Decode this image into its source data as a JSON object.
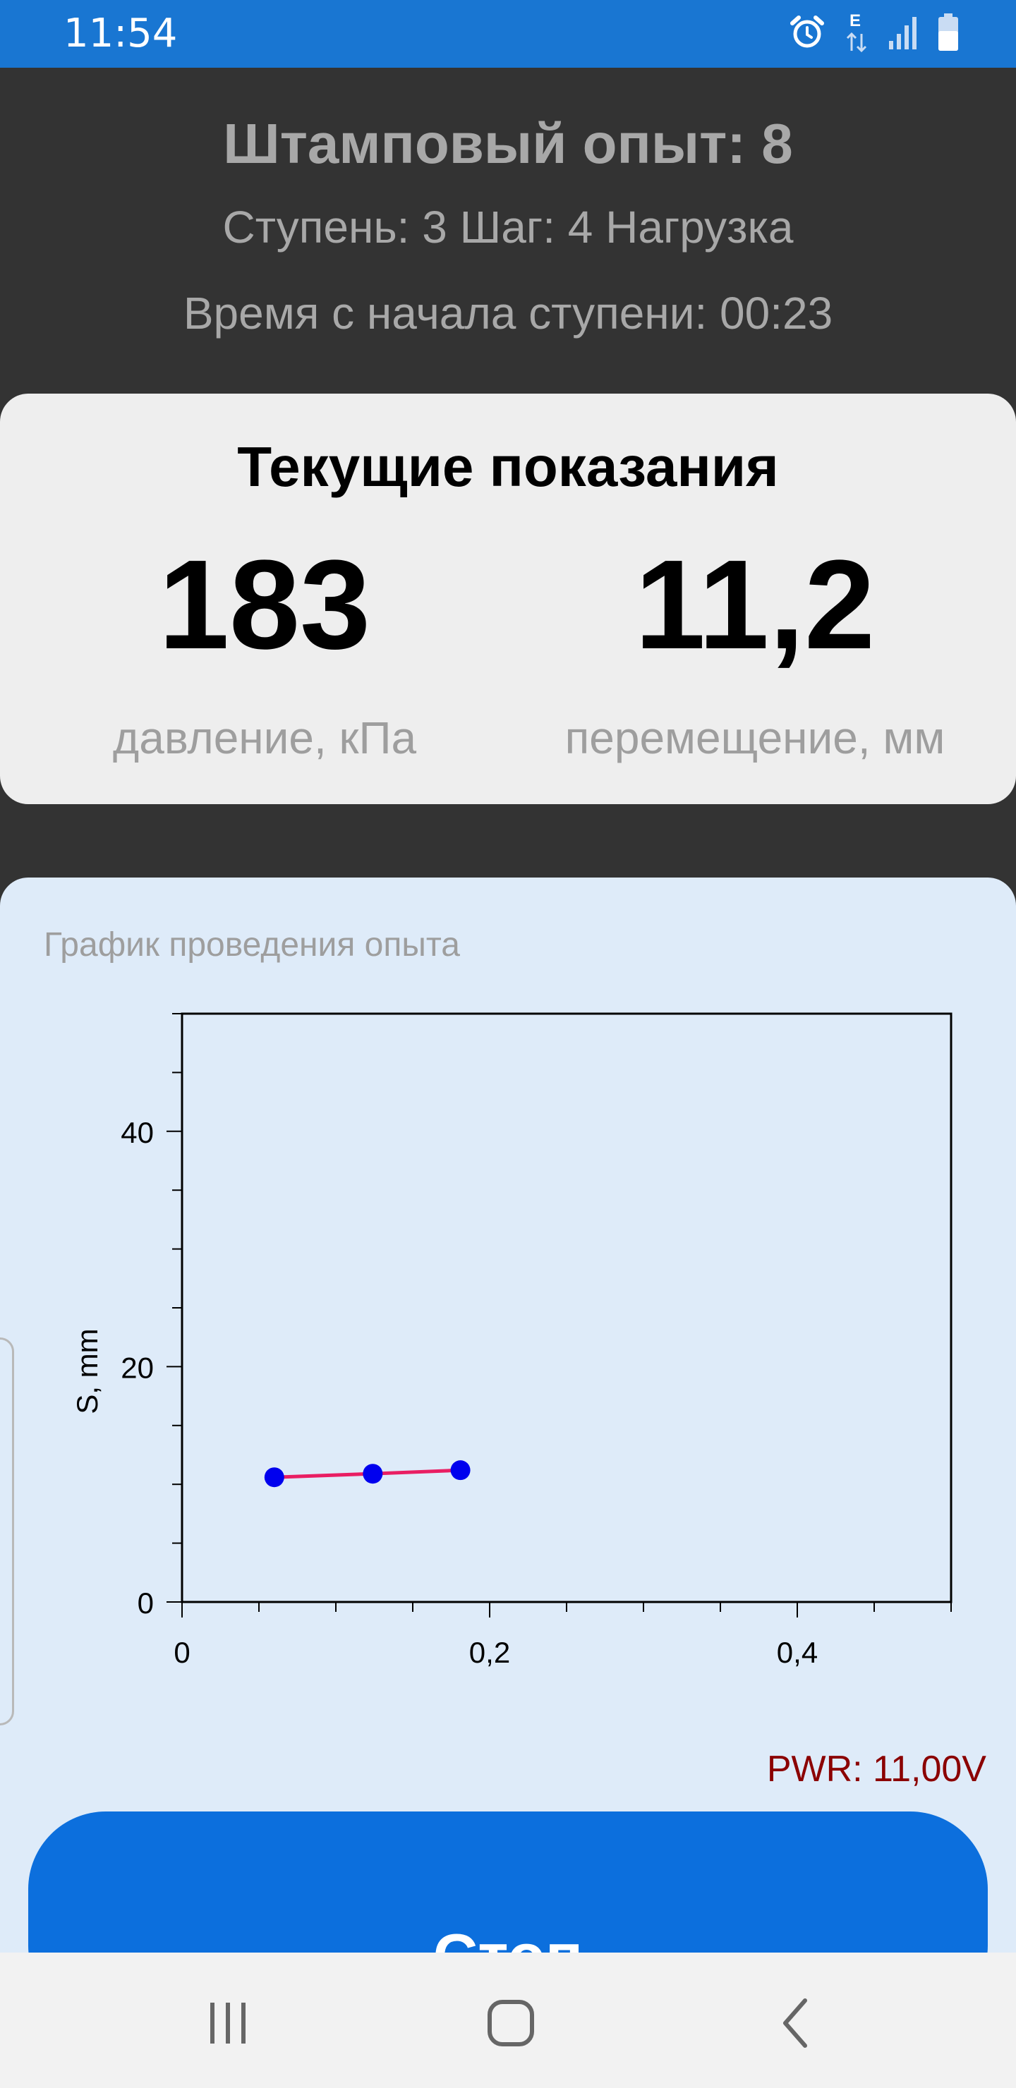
{
  "status_bar": {
    "time": "11:54",
    "icons": [
      "alarm-icon",
      "data-e-icon",
      "signal-icon",
      "battery-icon"
    ],
    "data_letter": "E"
  },
  "header": {
    "title": "Штамповый опыт: 8",
    "step": "Ступень: 3 Шаг: 4 Нагрузка",
    "elapsed": "Время с начала ступени: 00:23"
  },
  "readings": {
    "title": "Текущие показания",
    "pressure_value": "183",
    "pressure_label": "давление, кПа",
    "displacement_value": "11,2",
    "displacement_label": "перемещение, мм"
  },
  "graph": {
    "title": "График проведения опыта"
  },
  "chart_data": {
    "type": "line",
    "x": [
      0.06,
      0.124,
      0.181
    ],
    "y": [
      10.6,
      10.9,
      11.2
    ],
    "xlim": [
      0,
      0.5
    ],
    "ylim": [
      0,
      50
    ],
    "xticks": [
      0,
      0.2,
      0.4
    ],
    "xtick_labels": [
      "0",
      "0,2",
      "0,4"
    ],
    "yticks": [
      0,
      20,
      40
    ],
    "ytick_labels": [
      "0",
      "20",
      "40"
    ],
    "ylabel": "S, mm",
    "xlabel": "",
    "grid": false,
    "line_color": "#e91e63",
    "marker_color": "#0000ee"
  },
  "power": "PWR: 11,00V",
  "stop_button": {
    "label": "Стоп"
  },
  "nav": [
    "recent-apps-icon",
    "home-icon",
    "back-icon"
  ],
  "colors": {
    "status_bar": "#1976d2",
    "header_bg": "#333333",
    "panel_bg": "#eeeeee",
    "graph_bg": "#deebf9",
    "button": "#0c6fdd",
    "power_text": "#8b0000"
  }
}
